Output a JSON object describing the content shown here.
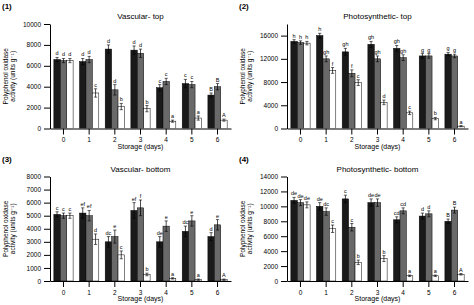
{
  "chart_data": [
    {
      "type": "bar",
      "title": "Vascular- top",
      "annotations": [
        "(1)"
      ],
      "xlabel": "Storage (days)",
      "ylabel": "Polyphenol oxidase activity (units g⁻¹)",
      "categories": [
        "0",
        "1",
        "2",
        "3",
        "4",
        "5",
        "6"
      ],
      "ylim": [
        0,
        10000
      ],
      "yticks": [
        0,
        2000,
        4000,
        6000,
        8000,
        10000
      ],
      "grid": false,
      "series": [
        {
          "color": "#1a1a1a",
          "values": [
            6600,
            6400,
            7600,
            7500,
            3900,
            4300,
            3200
          ],
          "errors": [
            200,
            300,
            400,
            400,
            300,
            400,
            200
          ],
          "labels": [
            "d",
            "d",
            "d",
            "d",
            "c",
            "c",
            "B"
          ]
        },
        {
          "color": "#696969",
          "values": [
            6500,
            6600,
            3700,
            7200,
            4500,
            4200,
            4000
          ],
          "errors": [
            200,
            300,
            500,
            400,
            300,
            300,
            300
          ],
          "labels": [
            "d",
            "d",
            "d",
            "d",
            "c",
            "c",
            "B"
          ]
        },
        {
          "color": "#ffffff",
          "values": [
            6500,
            3400,
            2100,
            1900,
            700,
            1000,
            800
          ],
          "errors": [
            200,
            400,
            300,
            300,
            100,
            200,
            100
          ],
          "labels": [
            "d",
            "c",
            "b",
            "b",
            "a",
            "a",
            "A"
          ]
        }
      ]
    },
    {
      "type": "bar",
      "title": "Photosynthetic- top",
      "annotations": [
        "(2)"
      ],
      "xlabel": "Storage (days)",
      "ylabel": "Polyphenol oxidase activity (units g⁻¹)",
      "categories": [
        "0",
        "1",
        "2",
        "3",
        "4",
        "5",
        "6"
      ],
      "ylim": [
        0,
        18000
      ],
      "yticks": [
        0,
        4000,
        8000,
        12000,
        16000
      ],
      "grid": false,
      "series": [
        {
          "color": "#1a1a1a",
          "values": [
            15000,
            16000,
            13200,
            14500,
            13800,
            12500,
            12800
          ],
          "errors": [
            300,
            400,
            600,
            500,
            500,
            400,
            300
          ],
          "labels": [
            "h",
            "h",
            "gh",
            "gh",
            "gh",
            "g",
            "g"
          ]
        },
        {
          "color": "#696969",
          "values": [
            14800,
            12000,
            9500,
            12000,
            12200,
            12500,
            12500
          ],
          "errors": [
            300,
            500,
            600,
            500,
            500,
            400,
            300
          ],
          "labels": [
            "h",
            "gh",
            "f",
            "gh",
            "gh",
            "g",
            "g"
          ]
        },
        {
          "color": "#ffffff",
          "values": [
            14700,
            10000,
            7900,
            4500,
            2700,
            1700,
            400
          ],
          "errors": [
            300,
            500,
            500,
            400,
            300,
            200,
            100
          ],
          "labels": [
            "h",
            "f",
            "c",
            "d",
            "c",
            "b",
            "a"
          ]
        }
      ]
    },
    {
      "type": "bar",
      "title": "Vascular- bottom",
      "annotations": [
        "(3)"
      ],
      "xlabel": "Storage (days)",
      "ylabel": "Polyphenol oxidase activity (units g⁻¹)",
      "categories": [
        "0",
        "1",
        "2",
        "3",
        "4",
        "5",
        "6"
      ],
      "ylim": [
        0,
        8000
      ],
      "yticks": [
        0,
        1000,
        2000,
        3000,
        4000,
        5000,
        6000,
        7000,
        8000
      ],
      "grid": false,
      "series": [
        {
          "color": "#1a1a1a",
          "values": [
            5100,
            5200,
            3000,
            5400,
            3000,
            3800,
            3400
          ],
          "errors": [
            200,
            400,
            400,
            600,
            400,
            400,
            300
          ],
          "labels": [
            "c",
            "ef",
            "dc",
            "ef",
            "de",
            "dc",
            "d"
          ]
        },
        {
          "color": "#696969",
          "values": [
            5000,
            5000,
            3400,
            5600,
            4200,
            4600,
            4300
          ],
          "errors": [
            200,
            400,
            500,
            600,
            400,
            400,
            400
          ],
          "labels": [
            "c",
            "ef",
            "e",
            "f",
            "e",
            "e",
            "e"
          ]
        },
        {
          "color": "#ffffff",
          "values": [
            5000,
            3200,
            2000,
            500,
            200,
            100,
            100
          ],
          "errors": [
            200,
            400,
            300,
            100,
            50,
            50,
            50
          ],
          "labels": [
            "c",
            "d",
            "c",
            "b",
            "a",
            "a",
            "A"
          ]
        }
      ]
    },
    {
      "type": "bar",
      "title": "Photosynthetic- bottom",
      "annotations": [
        "(4)"
      ],
      "xlabel": "Storage (days)",
      "ylabel": "Polyphenol oxidase activity (units g⁻¹)",
      "categories": [
        "0",
        "1",
        "2",
        "3",
        "4",
        "5",
        "6"
      ],
      "ylim": [
        0,
        14000
      ],
      "yticks": [
        0,
        2000,
        4000,
        6000,
        8000,
        10000,
        12000,
        14000
      ],
      "grid": false,
      "series": [
        {
          "color": "#1a1a1a",
          "values": [
            10800,
            10000,
            11000,
            10500,
            8200,
            8700,
            8000
          ],
          "errors": [
            400,
            500,
            500,
            500,
            400,
            400,
            300
          ],
          "labels": [
            "de",
            "de",
            "c",
            "de",
            "cd",
            "d",
            "B"
          ]
        },
        {
          "color": "#696969",
          "values": [
            10500,
            9300,
            7200,
            10500,
            9400,
            9000,
            9500
          ],
          "errors": [
            400,
            500,
            500,
            500,
            400,
            400,
            400
          ],
          "labels": [
            "de",
            "dc",
            "c",
            "de",
            "cd",
            "d",
            "B"
          ]
        },
        {
          "color": "#ffffff",
          "values": [
            10200,
            7000,
            2500,
            3000,
            700,
            700,
            900
          ],
          "errors": [
            400,
            500,
            300,
            400,
            100,
            100,
            100
          ],
          "labels": [
            "de",
            "c",
            "b",
            "b",
            "a",
            "a",
            "A"
          ]
        }
      ]
    }
  ]
}
